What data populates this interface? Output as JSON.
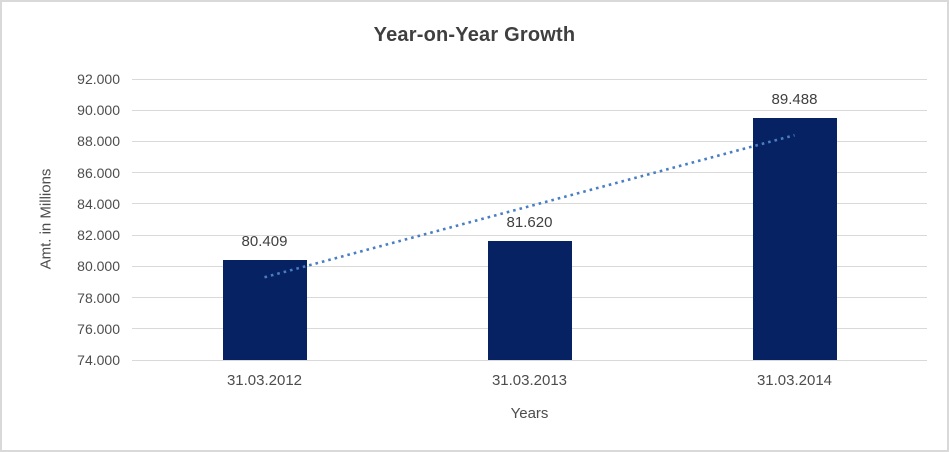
{
  "chart_data": {
    "type": "bar",
    "title": "Year-on-Year Growth",
    "xlabel": "Years",
    "ylabel": "Amt. in Millions",
    "categories": [
      "31.03.2012",
      "31.03.2013",
      "31.03.2014"
    ],
    "values": [
      80.409,
      81.62,
      89.488
    ],
    "data_labels": [
      "80.409",
      "81.620",
      "89.488"
    ],
    "ylim": [
      74,
      92
    ],
    "y_tick_step": 2,
    "y_tick_labels": [
      "74.000",
      "76.000",
      "78.000",
      "80.000",
      "82.000",
      "84.000",
      "86.000",
      "88.000",
      "90.000",
      "92.000"
    ],
    "grid": true,
    "legend": false,
    "bar_color": "#062263",
    "trendline": {
      "style": "dotted",
      "color": "#4A7EC2",
      "start_value": 79.3,
      "end_value": 88.4
    },
    "colors": {
      "gridline": "#D9D9D9",
      "frame_border": "#D9D9D9",
      "title_text": "#3F3F3F",
      "axis_text": "#4D4D4D",
      "data_label_text": "#404040"
    }
  }
}
